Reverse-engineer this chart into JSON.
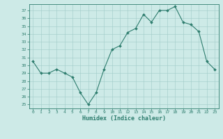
{
  "x": [
    0,
    1,
    2,
    3,
    4,
    5,
    6,
    7,
    8,
    9,
    10,
    11,
    12,
    13,
    14,
    15,
    16,
    17,
    18,
    19,
    20,
    21,
    22,
    23
  ],
  "y": [
    30.5,
    29.0,
    29.0,
    29.5,
    29.0,
    28.5,
    26.5,
    25.0,
    26.5,
    29.5,
    32.0,
    32.5,
    34.2,
    34.7,
    36.5,
    35.5,
    37.0,
    37.0,
    37.5,
    35.5,
    35.2,
    34.3,
    30.5,
    29.5
  ],
  "yticks": [
    25,
    26,
    27,
    28,
    29,
    30,
    31,
    32,
    33,
    34,
    35,
    36,
    37
  ],
  "xlabel": "Humidex (Indice chaleur)",
  "line_color": "#2e7d6e",
  "marker_color": "#2e7d6e",
  "bg_color": "#cdeae7",
  "grid_color": "#a0cbc8",
  "tick_label_color": "#2e7d6e",
  "xlabel_color": "#2e7d6e",
  "figsize": [
    3.2,
    2.0
  ],
  "dpi": 100
}
